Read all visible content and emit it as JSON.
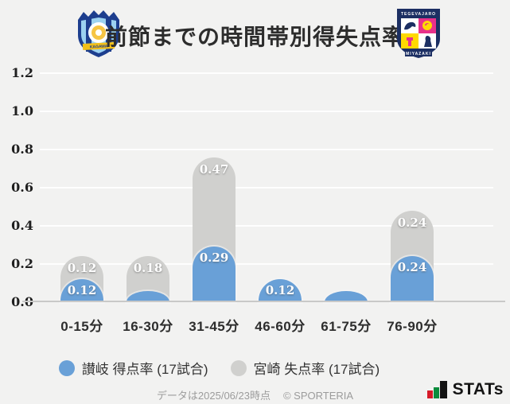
{
  "header": {
    "title": "前節までの時間帯別得失点率",
    "left_logo_alt": "カマタマーレ讃岐",
    "right_logo_alt": "テゲバジャーロ宮崎"
  },
  "chart_data": {
    "type": "bar",
    "stacked": true,
    "title": "前節までの時間帯別得失点率",
    "categories": [
      "0-15分",
      "16-30分",
      "31-45分",
      "46-60分",
      "61-75分",
      "76-90分"
    ],
    "series": [
      {
        "id": "sanuki",
        "name": "讃岐 得点率 (17試合)",
        "color": "#69a0d7",
        "values": [
          0.12,
          0.06,
          0.29,
          0.12,
          0.06,
          0.24
        ],
        "labels": [
          "0.12",
          "",
          "0.29",
          "0.12",
          "",
          "0.24"
        ]
      },
      {
        "id": "miyazaki",
        "name": "宮崎 失点率 (17試合)",
        "color": "#d0d0ce",
        "values": [
          0.12,
          0.18,
          0.47,
          0,
          0,
          0.24
        ],
        "labels": [
          "0.12",
          "0.18",
          "0.47",
          "",
          "",
          "0.24"
        ]
      }
    ],
    "ylim": [
      0,
      1.2
    ],
    "yticks": [
      "0.0",
      "0.2",
      "0.4",
      "0.6",
      "0.8",
      "1.0",
      "1.2"
    ],
    "grid": true,
    "legend_position": "bottom"
  },
  "footer": {
    "note": "データは2025/06/23時点",
    "copyright": "© SPORTERIA",
    "brand": "STATs"
  }
}
